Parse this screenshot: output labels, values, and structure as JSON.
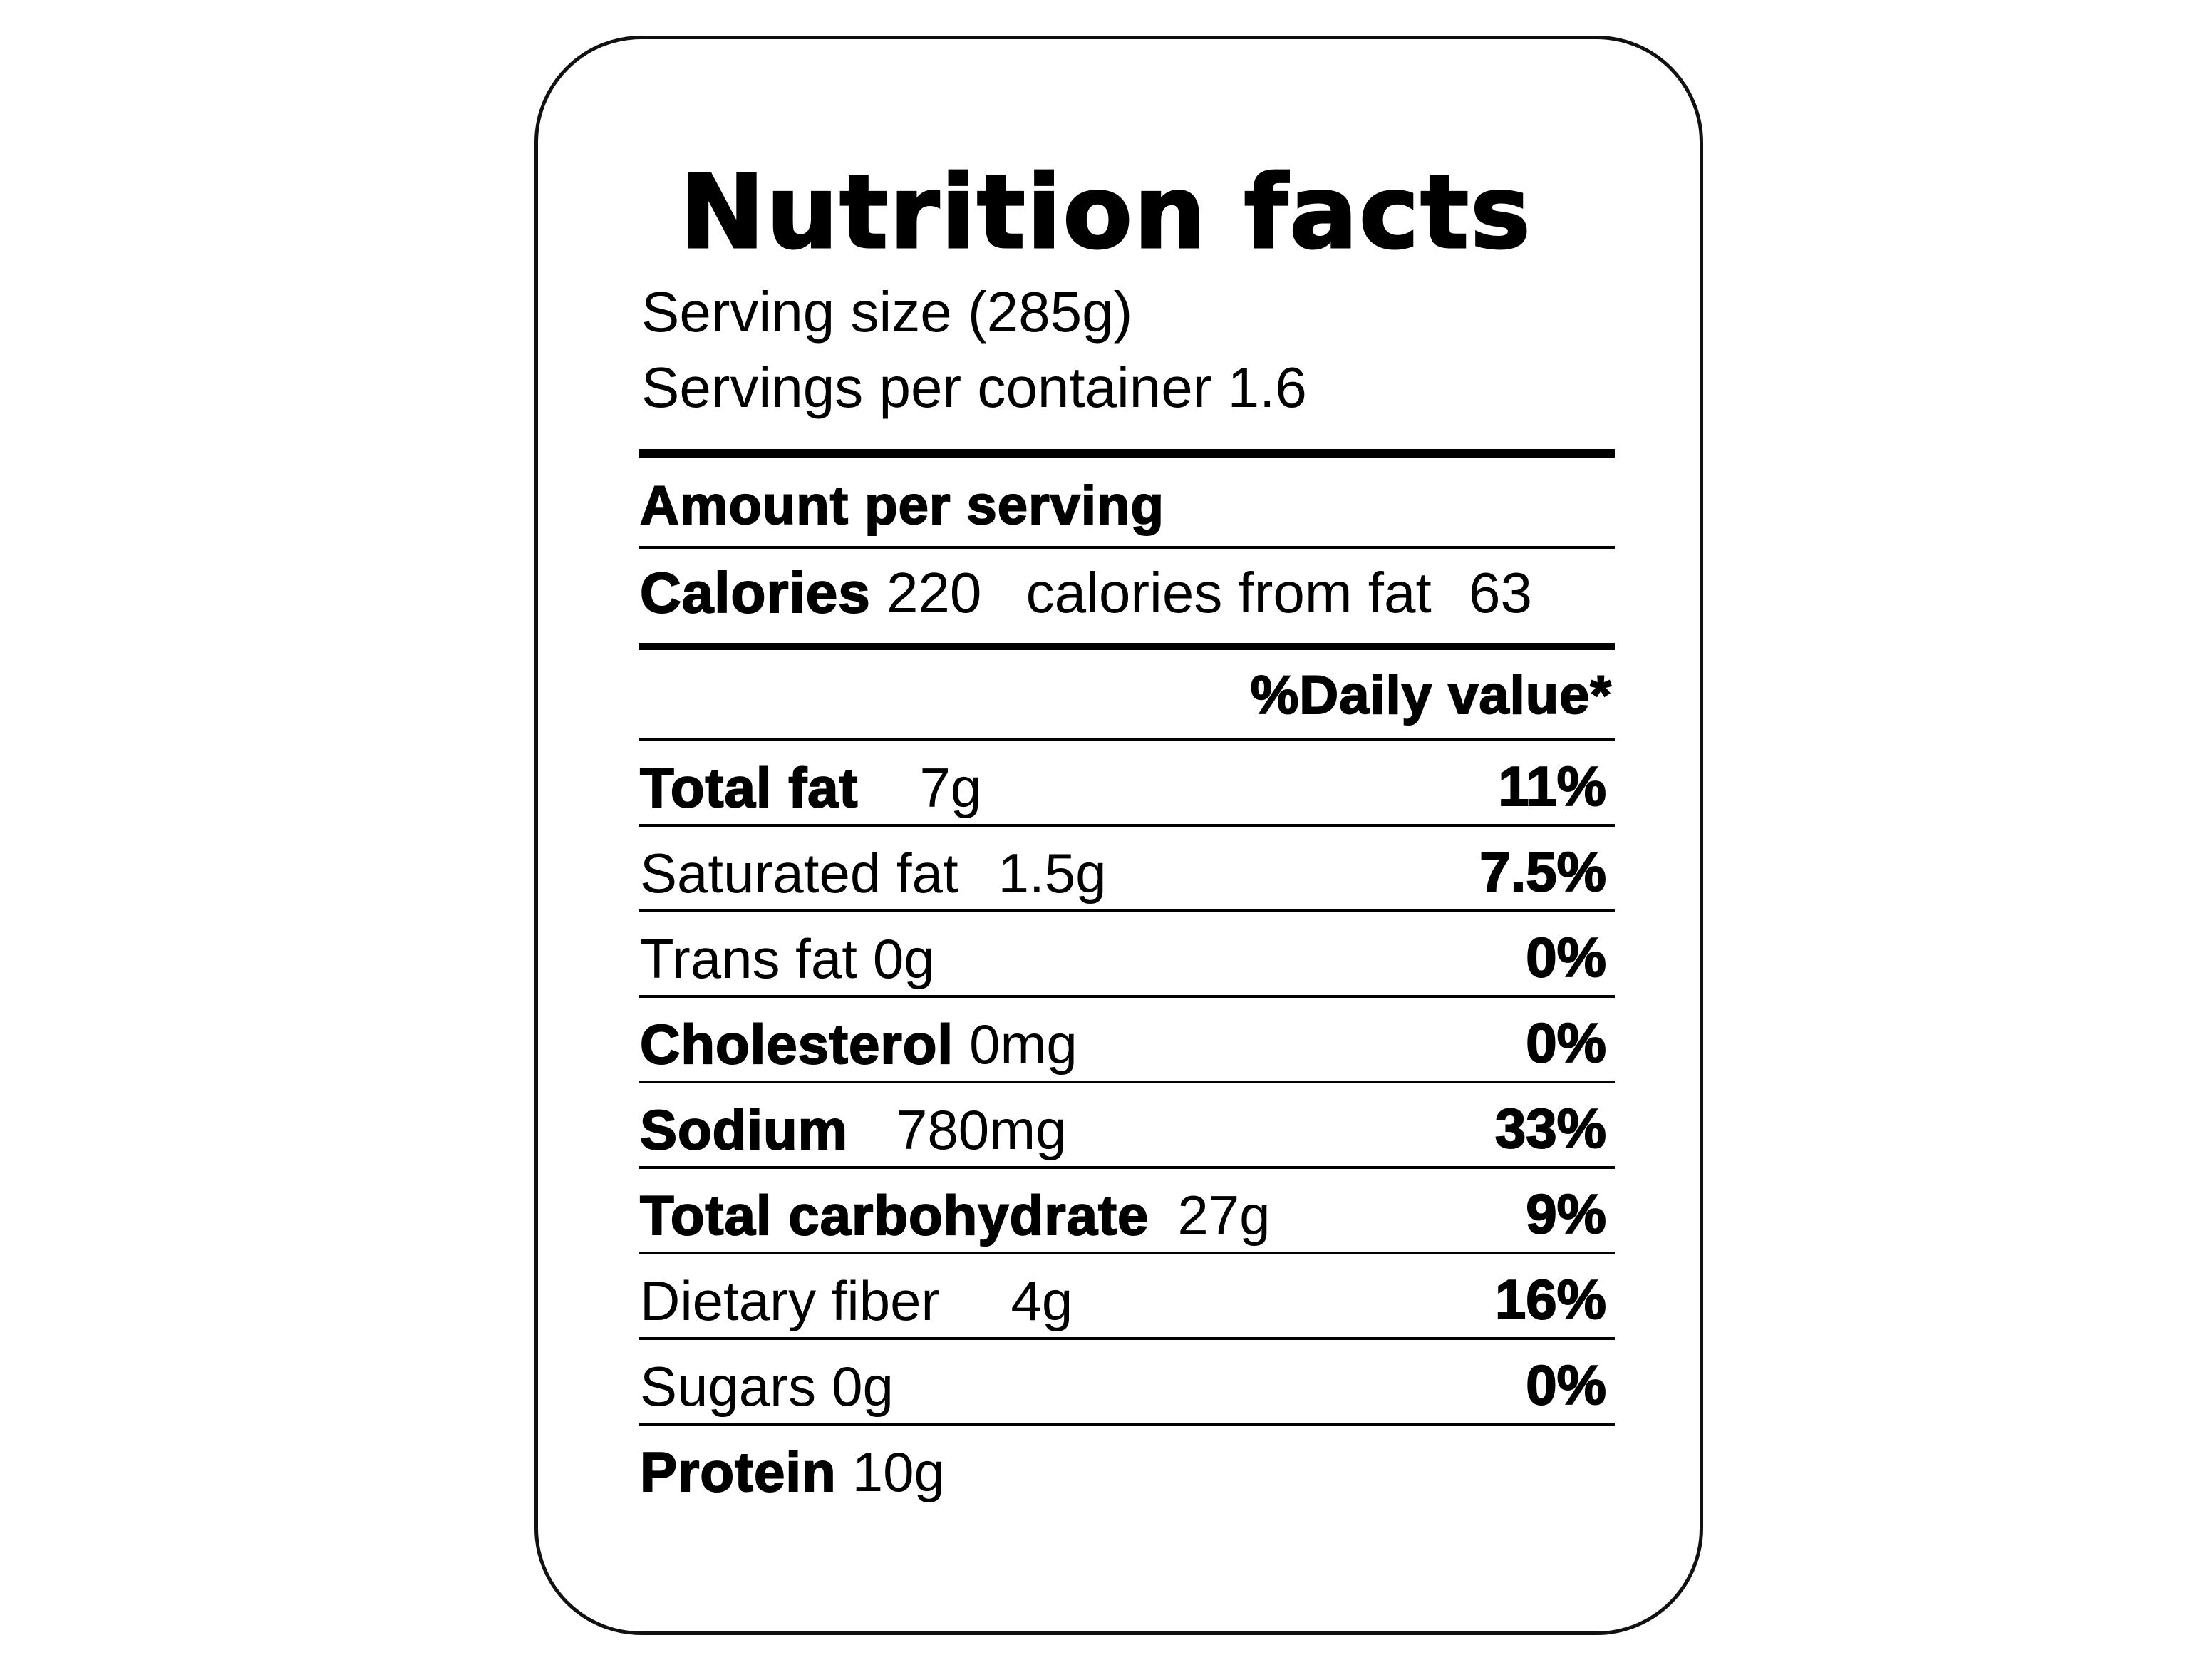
{
  "title": "Nutrition facts",
  "serving_size": "Serving size (285g)",
  "servings_per_container": "Servings per container 1.6",
  "amount_per_serving": "Amount per serving",
  "calories": {
    "label": "Calories",
    "value": "220",
    "from_fat_label": "calories from fat",
    "from_fat_value": "63"
  },
  "daily_value_header": "%Daily value*",
  "rows": [
    {
      "label": "Total fat",
      "amount": "7g",
      "percent": "11%",
      "bold": true
    },
    {
      "label": "Saturated fat",
      "amount": "1.5g",
      "percent": "7.5%",
      "bold": false
    },
    {
      "label": "Trans fat",
      "amount": "0g",
      "percent": "0%",
      "bold": false
    },
    {
      "label": "Cholesterol",
      "amount": "0mg",
      "percent": "0%",
      "bold": true
    },
    {
      "label": "Sodium",
      "amount": "780mg",
      "percent": "33%",
      "bold": true
    },
    {
      "label": "Total carbohydrate",
      "amount": "27g",
      "percent": "9%",
      "bold": true
    },
    {
      "label": "Dietary fiber",
      "amount": "4g",
      "percent": "16%",
      "bold": false
    },
    {
      "label": "Sugars",
      "amount": "0g",
      "percent": "0%",
      "bold": false
    },
    {
      "label": "Protein",
      "amount": "10g",
      "bold": true
    }
  ]
}
